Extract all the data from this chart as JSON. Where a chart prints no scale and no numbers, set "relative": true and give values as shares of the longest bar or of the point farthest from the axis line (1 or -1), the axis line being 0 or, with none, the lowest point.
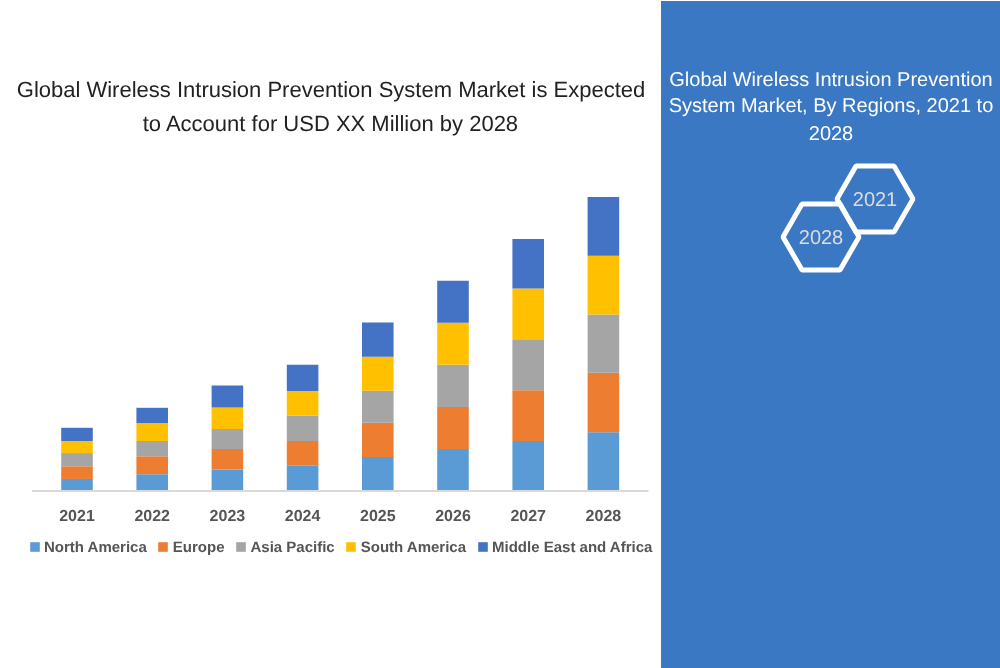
{
  "chart_data": {
    "type": "bar",
    "title": "Global Wireless Intrusion Prevention System Market is Expected to Account for USD XX Million by 2028",
    "subtitle": "Global Wireless Intrusion Prevention System Market, By Regions, 2021 to 2028",
    "annotations": [
      "2028",
      "2021"
    ],
    "categories": [
      "2021",
      "2022",
      "2023",
      "2024",
      "2025",
      "2026",
      "2027",
      "2028"
    ],
    "stacked": true,
    "relative": true,
    "legend": "bottom",
    "grid": false,
    "series": [
      {
        "name": "North America",
        "color": "#5b9bd5",
        "values": [
          0.041,
          0.057,
          0.073,
          0.086,
          0.116,
          0.143,
          0.17,
          0.2
        ]
      },
      {
        "name": "Europe",
        "color": "#ed7d31",
        "values": [
          0.043,
          0.061,
          0.07,
          0.084,
          0.116,
          0.143,
          0.173,
          0.202
        ]
      },
      {
        "name": "Asia Pacific",
        "color": "#a5a5a5",
        "values": [
          0.045,
          0.052,
          0.068,
          0.086,
          0.109,
          0.143,
          0.173,
          0.198
        ]
      },
      {
        "name": "South America",
        "color": "#ffc000",
        "values": [
          0.041,
          0.061,
          0.073,
          0.084,
          0.116,
          0.143,
          0.173,
          0.2
        ]
      },
      {
        "name": "Middle East and Africa",
        "color": "#4472c4",
        "values": [
          0.045,
          0.052,
          0.075,
          0.089,
          0.116,
          0.143,
          0.168,
          0.2
        ]
      }
    ]
  }
}
